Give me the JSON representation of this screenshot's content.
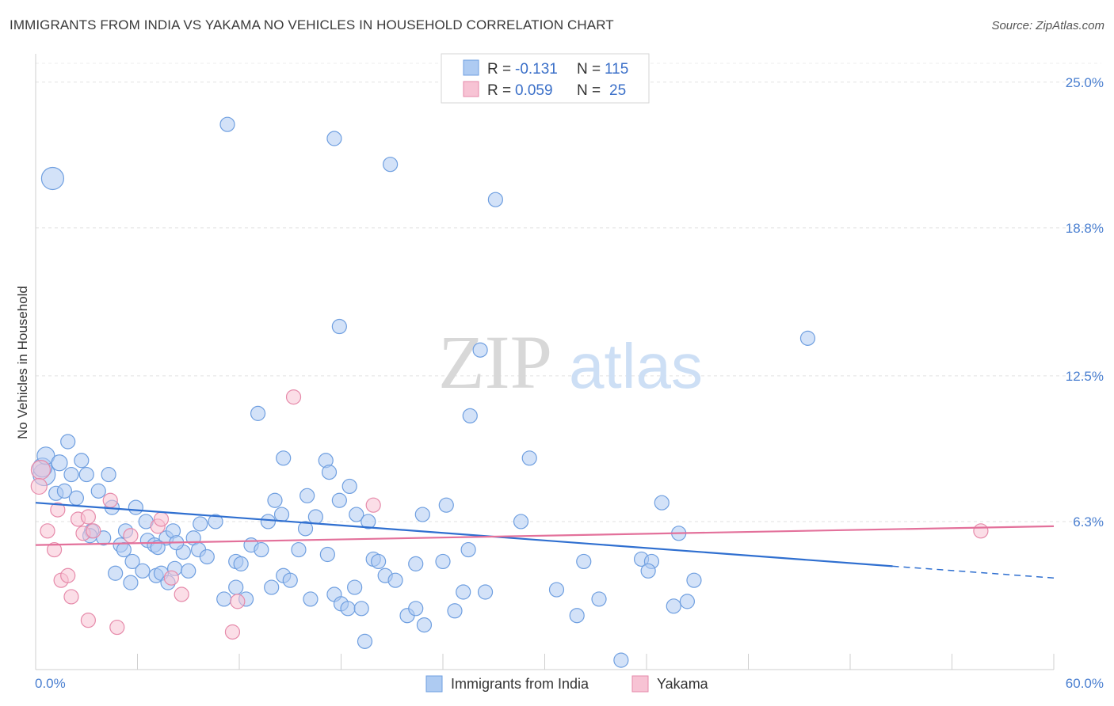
{
  "header": {
    "title": "IMMIGRANTS FROM INDIA VS YAKAMA NO VEHICLES IN HOUSEHOLD CORRELATION CHART",
    "source": "Source: ZipAtlas.com"
  },
  "watermark": {
    "zip": "ZIP",
    "atlas": "atlas"
  },
  "legend": {
    "r_label": "R =",
    "n_label": "N =",
    "rows": [
      {
        "r": "-0.131",
        "n": "115",
        "color": "#9cc3f0"
      },
      {
        "r": "0.059",
        "n": "25",
        "color": "#f5b7cb"
      }
    ]
  },
  "colors": {
    "blue_fill": "#aecbf2",
    "blue_stroke": "#6f9fe0",
    "blue_line": "#2f6fd0",
    "pink_fill": "#f7c3d4",
    "pink_stroke": "#e68aaa",
    "pink_line": "#e3719b"
  },
  "chart_data": {
    "type": "scatter",
    "title": "IMMIGRANTS FROM INDIA VS YAKAMA NO VEHICLES IN HOUSEHOLD CORRELATION CHART",
    "xlabel": "",
    "ylabel": "No Vehicles in Household",
    "xlim": [
      0,
      60
    ],
    "ylim": [
      0,
      25.8
    ],
    "x_tick_labels": [
      "0.0%",
      "60.0%"
    ],
    "y_ticks": [
      6.3,
      12.5,
      18.8,
      25.0
    ],
    "y_tick_labels": [
      "6.3%",
      "12.5%",
      "18.8%",
      "25.0%"
    ],
    "grid": true,
    "legend_position": "top-center",
    "series": [
      {
        "name": "Immigrants from India",
        "color": "#aecbf2",
        "trend": {
          "x0": 0,
          "y0": 7.1,
          "x1": 50.5,
          "y1": 4.4,
          "dash_to_x": 60,
          "dash_to_y": 3.9
        },
        "points": [
          [
            1.0,
            20.9,
            14
          ],
          [
            0.5,
            8.3,
            14
          ],
          [
            0.4,
            8.6,
            12
          ],
          [
            0.6,
            9.1,
            11
          ],
          [
            1.4,
            8.8,
            10
          ],
          [
            1.9,
            9.7,
            9
          ],
          [
            2.1,
            8.3,
            9
          ],
          [
            2.7,
            8.9,
            9
          ],
          [
            1.2,
            7.5,
            9
          ],
          [
            1.7,
            7.6,
            9
          ],
          [
            2.4,
            7.3,
            9
          ],
          [
            3.0,
            8.3,
            9
          ],
          [
            3.7,
            7.6,
            9
          ],
          [
            4.3,
            8.3,
            9
          ],
          [
            4.5,
            6.9,
            9
          ],
          [
            3.3,
            5.9,
            9
          ],
          [
            3.2,
            5.7,
            9
          ],
          [
            4.0,
            5.6,
            9
          ],
          [
            5.0,
            5.3,
            9
          ],
          [
            5.2,
            5.1,
            9
          ],
          [
            5.7,
            4.6,
            9
          ],
          [
            4.7,
            4.1,
            9
          ],
          [
            5.6,
            3.7,
            9
          ],
          [
            6.3,
            4.2,
            9
          ],
          [
            7.1,
            4.0,
            9
          ],
          [
            7.4,
            4.1,
            9
          ],
          [
            7.8,
            3.7,
            9
          ],
          [
            8.2,
            4.3,
            9
          ],
          [
            6.6,
            5.5,
            9
          ],
          [
            7.0,
            5.3,
            9
          ],
          [
            7.7,
            5.6,
            9
          ],
          [
            8.1,
            5.9,
            9
          ],
          [
            6.5,
            6.3,
            9
          ],
          [
            5.9,
            6.9,
            9
          ],
          [
            8.7,
            5.0,
            9
          ],
          [
            9.3,
            5.6,
            9
          ],
          [
            9.6,
            5.1,
            9
          ],
          [
            10.1,
            4.8,
            9
          ],
          [
            9.0,
            4.2,
            9
          ],
          [
            10.6,
            6.3,
            9
          ],
          [
            11.8,
            4.6,
            9
          ],
          [
            12.1,
            4.5,
            9
          ],
          [
            11.1,
            3.0,
            9
          ],
          [
            11.8,
            3.5,
            9
          ],
          [
            12.4,
            3.0,
            9
          ],
          [
            12.7,
            5.3,
            9
          ],
          [
            13.3,
            5.1,
            9
          ],
          [
            13.7,
            6.3,
            9
          ],
          [
            14.1,
            7.2,
            9
          ],
          [
            14.5,
            6.6,
            9
          ],
          [
            13.9,
            3.5,
            9
          ],
          [
            14.6,
            4.0,
            9
          ],
          [
            15.0,
            3.8,
            9
          ],
          [
            16.0,
            7.4,
            9
          ],
          [
            16.5,
            6.5,
            9
          ],
          [
            15.9,
            6.0,
            9
          ],
          [
            15.5,
            5.1,
            9
          ],
          [
            16.2,
            3.0,
            9
          ],
          [
            17.2,
            4.9,
            9
          ],
          [
            17.6,
            3.2,
            9
          ],
          [
            18.0,
            2.8,
            9
          ],
          [
            18.8,
            3.5,
            9
          ],
          [
            18.4,
            2.6,
            9
          ],
          [
            19.2,
            2.6,
            9
          ],
          [
            19.4,
            1.2,
            9
          ],
          [
            19.9,
            4.7,
            9
          ],
          [
            20.6,
            4.0,
            9
          ],
          [
            20.2,
            4.6,
            9
          ],
          [
            21.2,
            3.8,
            9
          ],
          [
            21.9,
            2.3,
            9
          ],
          [
            22.8,
            6.6,
            9
          ],
          [
            22.4,
            4.5,
            9
          ],
          [
            22.9,
            1.9,
            9
          ],
          [
            22.4,
            2.6,
            9
          ],
          [
            24.7,
            2.5,
            9
          ],
          [
            25.2,
            3.3,
            9
          ],
          [
            25.5,
            5.1,
            9
          ],
          [
            26.2,
            13.6,
            9
          ],
          [
            25.6,
            10.8,
            9
          ],
          [
            29.1,
            9.0,
            9
          ],
          [
            28.6,
            6.3,
            9
          ],
          [
            30.7,
            3.4,
            9
          ],
          [
            31.9,
            2.3,
            9
          ],
          [
            32.3,
            4.6,
            9
          ],
          [
            33.2,
            3.0,
            9
          ],
          [
            34.5,
            0.4,
            9
          ],
          [
            35.7,
            4.7,
            9
          ],
          [
            36.3,
            4.6,
            9
          ],
          [
            36.1,
            4.2,
            9
          ],
          [
            36.9,
            7.1,
            9
          ],
          [
            37.9,
            5.8,
            9
          ],
          [
            38.4,
            2.9,
            9
          ],
          [
            37.6,
            2.7,
            9
          ],
          [
            38.8,
            3.8,
            9
          ],
          [
            45.5,
            14.1,
            9
          ],
          [
            11.3,
            23.2,
            9
          ],
          [
            17.6,
            22.6,
            9
          ],
          [
            20.9,
            21.5,
            9
          ],
          [
            27.1,
            20.0,
            9
          ],
          [
            17.9,
            14.6,
            9
          ],
          [
            13.1,
            10.9,
            9
          ],
          [
            14.6,
            9.0,
            9
          ],
          [
            17.1,
            8.9,
            9
          ],
          [
            17.3,
            8.4,
            9
          ],
          [
            18.5,
            7.8,
            9
          ],
          [
            17.9,
            7.2,
            9
          ],
          [
            18.9,
            6.6,
            9
          ],
          [
            19.6,
            6.3,
            9
          ],
          [
            24.2,
            7.0,
            9
          ],
          [
            24.0,
            4.6,
            9
          ],
          [
            26.5,
            3.3,
            9
          ],
          [
            7.2,
            5.2,
            9
          ],
          [
            8.3,
            5.4,
            9
          ],
          [
            9.7,
            6.2,
            9
          ],
          [
            5.3,
            5.9,
            9
          ]
        ]
      },
      {
        "name": "Yakama",
        "color": "#f7c3d4",
        "trend": {
          "x0": 0,
          "y0": 5.3,
          "x1": 60,
          "y1": 6.1
        },
        "points": [
          [
            0.3,
            8.5,
            12
          ],
          [
            0.2,
            7.8,
            10
          ],
          [
            0.7,
            5.9,
            9
          ],
          [
            1.1,
            5.1,
            9
          ],
          [
            1.3,
            6.8,
            9
          ],
          [
            1.5,
            3.8,
            9
          ],
          [
            1.9,
            4.0,
            9
          ],
          [
            2.1,
            3.1,
            9
          ],
          [
            2.5,
            6.4,
            9
          ],
          [
            2.8,
            5.8,
            9
          ],
          [
            3.1,
            6.5,
            9
          ],
          [
            3.4,
            5.9,
            9
          ],
          [
            3.1,
            2.1,
            9
          ],
          [
            4.4,
            7.2,
            9
          ],
          [
            4.8,
            1.8,
            9
          ],
          [
            5.6,
            5.7,
            9
          ],
          [
            7.2,
            6.1,
            9
          ],
          [
            7.4,
            6.4,
            9
          ],
          [
            8.0,
            3.9,
            9
          ],
          [
            8.6,
            3.2,
            9
          ],
          [
            11.6,
            1.6,
            9
          ],
          [
            11.9,
            2.9,
            9
          ],
          [
            15.2,
            11.6,
            9
          ],
          [
            19.9,
            7.0,
            9
          ],
          [
            55.7,
            5.9,
            9
          ]
        ]
      }
    ]
  },
  "bottom_legend": [
    {
      "label": "Immigrants from India",
      "color": "#aecbf2"
    },
    {
      "label": "Yakama",
      "color": "#f7c3d4"
    }
  ]
}
